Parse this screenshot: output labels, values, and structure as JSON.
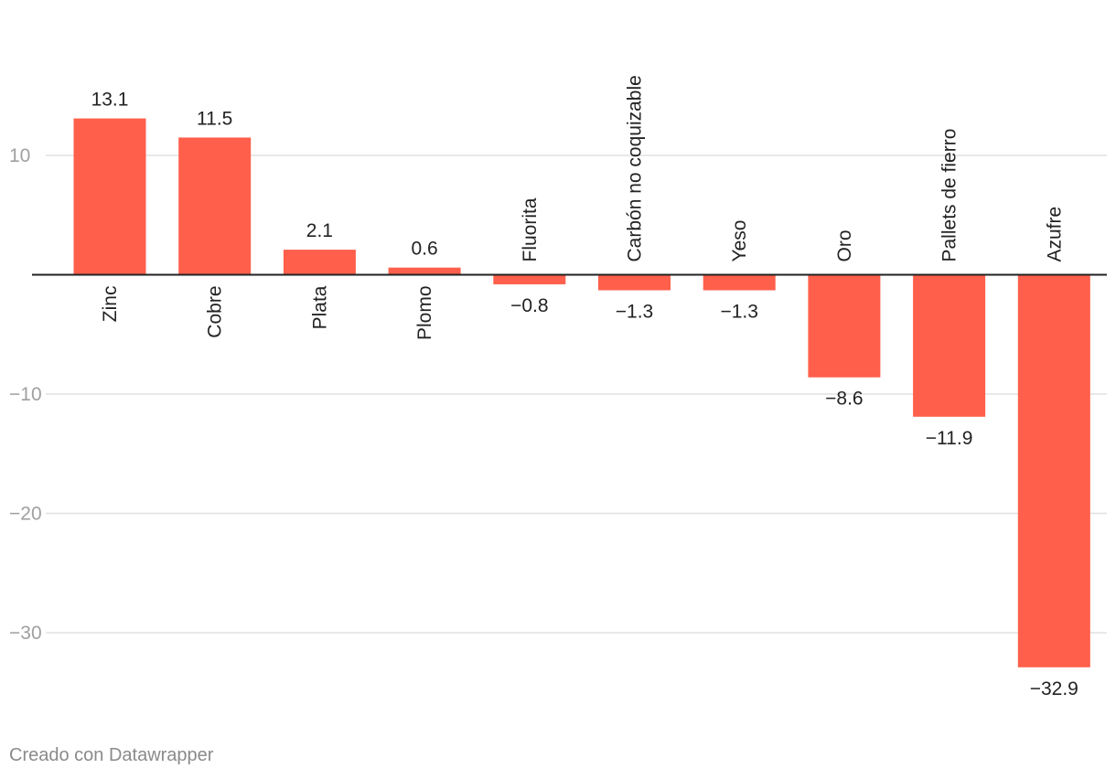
{
  "chart_data": {
    "type": "bar",
    "categories": [
      "Zinc",
      "Cobre",
      "Plata",
      "Plomo",
      "Fluorita",
      "Carbón no coquizable",
      "Yeso",
      "Oro",
      "Pallets de fierro",
      "Azufre"
    ],
    "values": [
      13.1,
      11.5,
      2.1,
      0.6,
      -0.8,
      -1.3,
      -1.3,
      -8.6,
      -11.9,
      -32.9
    ],
    "value_labels": [
      "13.1",
      "11.5",
      "2.1",
      "0.6",
      "−0.8",
      "−1.3",
      "−1.3",
      "−8.6",
      "−11.9",
      "−32.9"
    ],
    "y_ticks": [
      10,
      -10,
      -20,
      -30
    ],
    "y_tick_labels": [
      "10",
      "−10",
      "−20",
      "−30"
    ],
    "ylim": [
      -34,
      15
    ],
    "grid": true,
    "bar_color": "#ff5f4b",
    "title": "",
    "xlabel": "",
    "ylabel": ""
  },
  "credit": "Creado con Datawrapper"
}
